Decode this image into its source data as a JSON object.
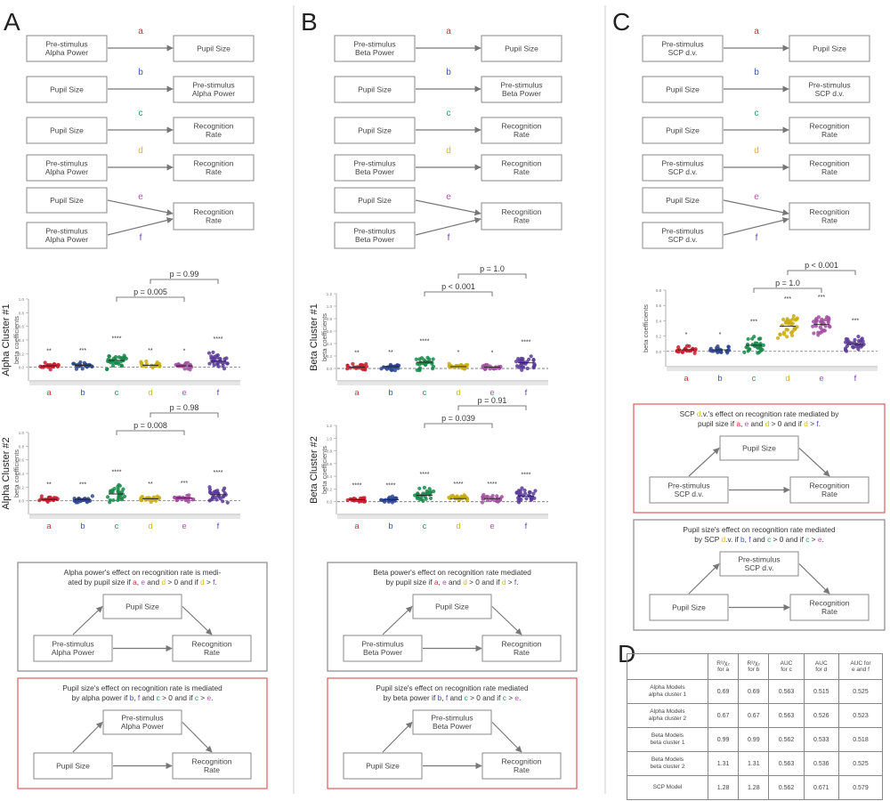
{
  "panel_letters": [
    "A",
    "B",
    "C",
    "D"
  ],
  "colors": {
    "a": "#d62b3a",
    "b": "#3a57a8",
    "c": "#20a05a",
    "d": "#d8b81a",
    "e": "#b452b0",
    "f": "#6a3fb0",
    "a_fill": "#c8202e",
    "b_fill": "#2b4591",
    "c_fill": "#188a4a",
    "d_fill": "#c9ac12",
    "e_fill": "#a34ea2",
    "f_fill": "#5a3a9a",
    "box_border": "#888888",
    "highlight": "#e05a5a",
    "text_gray": "#444444"
  },
  "panel_A": {
    "models": [
      {
        "left": "Pre-stimulus\nAlpha Power",
        "right": "Pupil Size",
        "letter": "a"
      },
      {
        "left": "Pupil Size",
        "right": "Pre-stimulus\nAlpha Power",
        "letter": "b"
      },
      {
        "left": "Pupil Size",
        "right": "Recognition\nRate",
        "letter": "c"
      },
      {
        "left": "Pre-stimulus\nAlpha Power",
        "right": "Recognition\nRate",
        "letter": "d"
      }
    ],
    "combined": {
      "top": "Pupil Size",
      "bottom": "Pre-stimulus\nAlpha Power",
      "right": "Recognition\nRate",
      "l1": "e",
      "l2": "f"
    },
    "plots": [
      {
        "ylabel": "Alpha Cluster #1",
        "sublabel": "beta coefficients",
        "p1": "p = 0.005",
        "p2": "p = 0.99",
        "stars": [
          "**",
          "***",
          "****",
          "**",
          "*",
          "****"
        ]
      },
      {
        "ylabel": "Alpha Cluster #2",
        "sublabel": "beta coefficients",
        "p1": "p = 0.008",
        "p2": "p = 0.98",
        "stars": [
          "**",
          "***",
          "****",
          "**",
          "***",
          "****"
        ]
      }
    ],
    "med1": {
      "text": "Alpha power's effect on recognition rate is medi-\nated by pupil size if a, e and d > 0 and if d > f.",
      "apex": "Pupil Size",
      "left": "Pre-stimulus\nAlpha Power",
      "right": "Recognition\nRate"
    },
    "med2": {
      "text": "Pupil size's effect on recognition rate is mediated\nby alpha power if b, f and c > 0 and if c > e.",
      "apex": "Pre-stimulus\nAlpha Power",
      "left": "Pupil Size",
      "right": "Recognition\nRate"
    }
  },
  "panel_B": {
    "models": [
      {
        "left": "Pre-stimulus\nBeta Power",
        "right": "Pupil Size",
        "letter": "a"
      },
      {
        "left": "Pupil Size",
        "right": "Pre-stimulus\nBeta Power",
        "letter": "b"
      },
      {
        "left": "Pupil Size",
        "right": "Recognition\nRate",
        "letter": "c"
      },
      {
        "left": "Pre-stimulus\nBeta Power",
        "right": "Recognition\nRate",
        "letter": "d"
      }
    ],
    "combined": {
      "top": "Pupil Size",
      "bottom": "Pre-stimulus\nBeta Power",
      "right": "Recognition\nRate",
      "l1": "e",
      "l2": "f"
    },
    "plots": [
      {
        "ylabel": "Beta Cluster #1",
        "sublabel": "beta coefficients",
        "p1": "p < 0.001",
        "p2": "p = 1.0",
        "stars": [
          "**",
          "**",
          "****",
          "*",
          "*",
          "****"
        ]
      },
      {
        "ylabel": "Beta Cluster #2",
        "sublabel": "beta coefficients",
        "p1": "p = 0.039",
        "p2": "p = 0.91",
        "stars": [
          "****",
          "****",
          "****",
          "****",
          "****",
          "****"
        ]
      }
    ],
    "med1": {
      "text": "Beta power's effect on recognition rate mediated\nby pupil size if a, e and d > 0 and if d > f.",
      "apex": "Pupil Size",
      "left": "Pre-stimulus\nBeta Power",
      "right": "Recognition\nRate"
    },
    "med2": {
      "text": "Pupil size's effect on recognition rate mediated\nby beta power if b, f and c > 0 and if c > e.",
      "apex": "Pre-stimulus\nBeta Power",
      "left": "Pupil Size",
      "right": "Recognition\nRate"
    }
  },
  "panel_C": {
    "models": [
      {
        "left": "Pre-stimulus\nSCP d.v.",
        "right": "Pupil Size",
        "letter": "a"
      },
      {
        "left": "Pupil Size",
        "right": "Pre-stimulus\nSCP d.v.",
        "letter": "b"
      },
      {
        "left": "Pupil Size",
        "right": "Recognition\nRate",
        "letter": "c"
      },
      {
        "left": "Pre-stimulus\nSCP d.v.",
        "right": "Recognition\nRate",
        "letter": "d"
      }
    ],
    "combined": {
      "top": "Pupil Size",
      "bottom": "Pre-stimulus\nSCP d.v.",
      "right": "Recognition\nRate",
      "l1": "e",
      "l2": "f"
    },
    "plots": [
      {
        "ylabel": "",
        "sublabel": "beta coefficients",
        "p1": "p = 1.0",
        "p2": "p < 0.001",
        "stars": [
          "*",
          "*",
          "***",
          "***",
          "***",
          "***"
        ]
      }
    ],
    "med1": {
      "text": "SCP d.v.'s effect on recognition rate mediated by\npupil size if a, e and d > 0 and if d > f.",
      "apex": "Pupil Size",
      "left": "Pre-stimulus\nSCP d.v.",
      "right": "Recognition\nRate"
    },
    "med2": {
      "text": "Pupil size's effect on recognition rate mediated\nby SCP d.v. if b, f and c > 0 and if c > e.",
      "apex": "Pre-stimulus\nSCP d.v.",
      "left": "Pupil Size",
      "right": "Recognition\nRate"
    }
  },
  "chart_data": [
    {
      "type": "scatter",
      "panel": "A",
      "title": "Alpha Cluster #1",
      "ylabel": "beta coefficients",
      "categories": [
        "a",
        "b",
        "c",
        "d",
        "e",
        "f"
      ],
      "ylim": [
        -0.2,
        1.0
      ],
      "means": [
        0.02,
        0.03,
        0.1,
        0.03,
        0.02,
        0.09
      ],
      "stars": [
        "**",
        "***",
        "****",
        "**",
        "*",
        "****"
      ],
      "comparisons": [
        {
          "pair": [
            "c",
            "e"
          ],
          "p": "p = 0.005"
        },
        {
          "pair": [
            "d",
            "f"
          ],
          "p": "p = 0.99"
        }
      ]
    },
    {
      "type": "scatter",
      "panel": "A",
      "title": "Alpha Cluster #2",
      "ylabel": "beta coefficients",
      "categories": [
        "a",
        "b",
        "c",
        "d",
        "e",
        "f"
      ],
      "ylim": [
        -0.2,
        1.0
      ],
      "means": [
        0.02,
        0.02,
        0.1,
        0.03,
        0.04,
        0.09
      ],
      "stars": [
        "**",
        "***",
        "****",
        "**",
        "***",
        "****"
      ],
      "comparisons": [
        {
          "pair": [
            "c",
            "e"
          ],
          "p": "p = 0.008"
        },
        {
          "pair": [
            "d",
            "f"
          ],
          "p": "p = 0.98"
        }
      ]
    },
    {
      "type": "scatter",
      "panel": "B",
      "title": "Beta Cluster #1",
      "ylabel": "beta coefficients",
      "categories": [
        "a",
        "b",
        "c",
        "d",
        "e",
        "f"
      ],
      "ylim": [
        -0.2,
        1.2
      ],
      "means": [
        0.02,
        0.03,
        0.1,
        0.03,
        0.02,
        0.09
      ],
      "stars": [
        "**",
        "**",
        "****",
        "*",
        "*",
        "****"
      ],
      "comparisons": [
        {
          "pair": [
            "c",
            "e"
          ],
          "p": "p < 0.001"
        },
        {
          "pair": [
            "d",
            "f"
          ],
          "p": "p = 1.0"
        }
      ]
    },
    {
      "type": "scatter",
      "panel": "B",
      "title": "Beta Cluster #2",
      "ylabel": "beta coefficients",
      "categories": [
        "a",
        "b",
        "c",
        "d",
        "e",
        "f"
      ],
      "ylim": [
        -0.2,
        1.2
      ],
      "means": [
        0.03,
        0.03,
        0.1,
        0.05,
        0.05,
        0.09
      ],
      "stars": [
        "****",
        "****",
        "****",
        "****",
        "****",
        "****"
      ],
      "comparisons": [
        {
          "pair": [
            "c",
            "e"
          ],
          "p": "p = 0.039"
        },
        {
          "pair": [
            "d",
            "f"
          ],
          "p": "p = 0.91"
        }
      ]
    },
    {
      "type": "scatter",
      "panel": "C",
      "title": "",
      "ylabel": "beta coefficients",
      "categories": [
        "a",
        "b",
        "c",
        "d",
        "e",
        "f"
      ],
      "ylim": [
        -0.2,
        0.8
      ],
      "means": [
        0.02,
        0.02,
        0.08,
        0.33,
        0.35,
        0.09
      ],
      "stars": [
        "*",
        "*",
        "***",
        "***",
        "***",
        "***"
      ],
      "comparisons": [
        {
          "pair": [
            "c",
            "e"
          ],
          "p": "p = 1.0"
        },
        {
          "pair": [
            "d",
            "f"
          ],
          "p": "p < 0.001"
        }
      ]
    }
  ],
  "table": {
    "headers": [
      "",
      "R²/χ₂\nfor a",
      "R²/χ₂\nfor b",
      "AUC\nfor c",
      "AUC\nfor d",
      "AUC for\ne and f"
    ],
    "rows": [
      {
        "label": "Alpha Models\nalpha cluster 1",
        "values": [
          "0.69",
          "0.69",
          "0.563",
          "0.515",
          "0.525"
        ]
      },
      {
        "label": "Alpha Models\nalpha cluster 2",
        "values": [
          "0.67",
          "0.67",
          "0.563",
          "0.526",
          "0.523"
        ]
      },
      {
        "label": "Beta Models\nbeta cluster 1",
        "values": [
          "0.99",
          "0.99",
          "0.562",
          "0.533",
          "0.518"
        ]
      },
      {
        "label": "Beta Models\nbeta cluster 2",
        "values": [
          "1.31",
          "1.31",
          "0.563",
          "0.536",
          "0.525"
        ]
      },
      {
        "label": "SCP Model",
        "values": [
          "1.28",
          "1.28",
          "0.562",
          "0.671",
          "0.579"
        ]
      }
    ]
  }
}
